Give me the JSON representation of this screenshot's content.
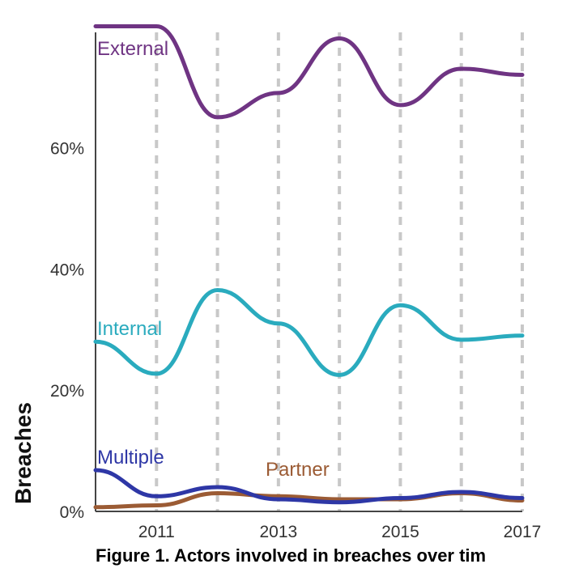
{
  "caption": "Figure 1.  Actors involved in breaches over tim",
  "chart_data": {
    "type": "line",
    "ylabel": "Breaches",
    "xlim": [
      2010,
      2017
    ],
    "ylim": [
      0,
      79
    ],
    "x_ticks": [
      {
        "value": 2011,
        "label": "2011"
      },
      {
        "value": 2013,
        "label": "2013"
      },
      {
        "value": 2015,
        "label": "2015"
      },
      {
        "value": 2017,
        "label": "2017"
      }
    ],
    "y_ticks": [
      {
        "value": 0,
        "label": "0%"
      },
      {
        "value": 20,
        "label": "20%"
      },
      {
        "value": 40,
        "label": "40%"
      },
      {
        "value": 60,
        "label": "60%"
      }
    ],
    "vertical_gridlines": [
      2011,
      2012,
      2013,
      2014,
      2015,
      2016,
      2017
    ],
    "grid_style": "dashed vertical",
    "series": [
      {
        "name": "External",
        "color": "#6f3483",
        "x": [
          2010,
          2011,
          2012,
          2013,
          2014,
          2015,
          2016,
          2017
        ],
        "y": [
          80,
          80,
          65,
          69,
          78,
          67,
          73,
          72
        ]
      },
      {
        "name": "Internal",
        "color": "#2aabbe",
        "x": [
          2010,
          2011,
          2012,
          2013,
          2014,
          2015,
          2016,
          2017
        ],
        "y": [
          28,
          22.7,
          36.5,
          31,
          22.5,
          34,
          28.3,
          29
        ]
      },
      {
        "name": "Multiple",
        "color": "#2e37a6",
        "x": [
          2010,
          2011,
          2012,
          2013,
          2014,
          2015,
          2016,
          2017
        ],
        "y": [
          6.8,
          2.5,
          4,
          2,
          1.5,
          2.2,
          3.2,
          2.2
        ]
      },
      {
        "name": "Partner",
        "color": "#9b5b34",
        "x": [
          2010,
          2011,
          2012,
          2013,
          2014,
          2015,
          2016,
          2017
        ],
        "y": [
          0.7,
          1,
          3,
          2.5,
          2,
          2,
          3,
          1.8
        ]
      }
    ]
  }
}
